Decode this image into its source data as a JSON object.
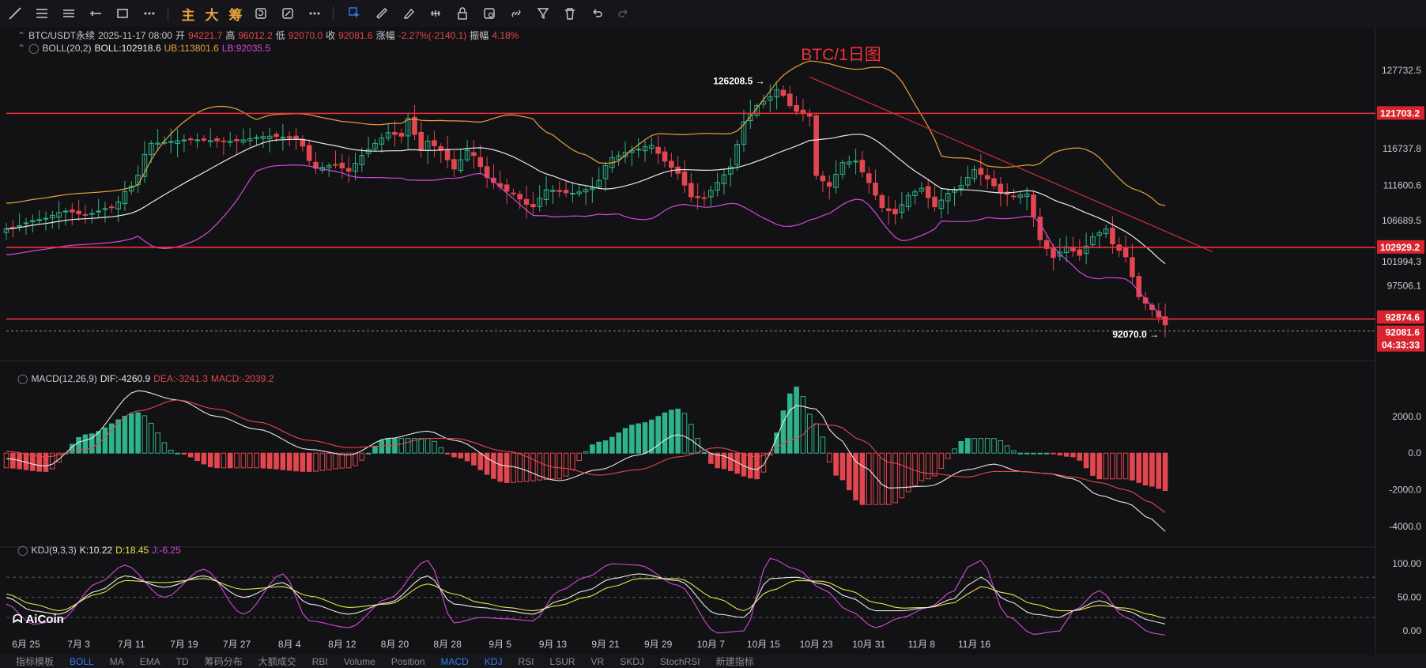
{
  "toolbar": {
    "main_label": "主",
    "big_label": "大",
    "chip_label": "筹"
  },
  "header": {
    "symbol": "BTC/USDT永续",
    "datetime": "2025-11-17 08:00",
    "open_label": "开",
    "open": "94221.7",
    "high_label": "高",
    "high": "96012.2",
    "low_label": "低",
    "low": "92070.0",
    "close_label": "收",
    "close": "92081.6",
    "change_label": "涨幅",
    "change": "-2.27%(-2140.1)",
    "amp_label": "振幅",
    "amp": "4.18%"
  },
  "boll": {
    "label": "BOLL(20,2)",
    "boll": "BOLL:102918.6",
    "ub": "UB:113801.6",
    "lb": "LB:92035.5"
  },
  "macd": {
    "label": "MACD(12,26,9)",
    "dif": "DIF:-4260.9",
    "dea": "DEA:-3241.3",
    "macd": "MACD:-2039.2"
  },
  "kdj": {
    "label": "KDJ(9,3,3)",
    "k": "K:10.22",
    "d": "D:18.45",
    "j": "J:-6.25"
  },
  "brand": "AiCoin",
  "chart_data": {
    "type": "candlestick",
    "title": "BTC/1日图",
    "colors": {
      "up": "#2fb38a",
      "down": "#e2464f",
      "boll_mid": "#e8e8e8",
      "boll_ub": "#e6a23c",
      "boll_lb": "#d14ad6",
      "hline": "#f0313c"
    },
    "price_axis": {
      "ticks": [
        127732.5,
        116737.8,
        111600.6,
        106689.5,
        97506.1
      ],
      "range": [
        89500,
        130500
      ]
    },
    "price_axis_tags": [
      "121703.2",
      "102929.2",
      "92874.6",
      "92081.6",
      "04:33:33"
    ],
    "price_axis_partial_label": "101994.3",
    "horizontal_lines": [
      121703.2,
      102929.2,
      92874.6
    ],
    "annotations": {
      "high": "126208.5",
      "low": "92070.0"
    },
    "trendline": {
      "from": [
        "10月6",
        126208.5
      ],
      "to": [
        "11月17",
        102500
      ]
    },
    "x_ticks": [
      "6月 25",
      "7月 3",
      "7月 11",
      "7月 19",
      "7月 27",
      "8月 4",
      "8月 12",
      "8月 20",
      "8月 28",
      "9月 5",
      "9月 13",
      "9月 21",
      "9月 29",
      "10月 7",
      "10月 15",
      "10月 23",
      "10月 31",
      "11月 8",
      "11月 16"
    ],
    "x_start": "6月 22",
    "close_anchors": [
      [
        0,
        105500
      ],
      [
        5,
        106800
      ],
      [
        9,
        108000
      ],
      [
        12,
        107500
      ],
      [
        16,
        108500
      ],
      [
        19,
        111500
      ],
      [
        22,
        117500
      ],
      [
        28,
        118000
      ],
      [
        34,
        117800
      ],
      [
        40,
        118500
      ],
      [
        44,
        118200
      ],
      [
        47,
        114000
      ],
      [
        50,
        114500
      ],
      [
        52,
        113600
      ],
      [
        54,
        115800
      ],
      [
        56,
        117500
      ],
      [
        58,
        119000
      ],
      [
        60,
        118500
      ],
      [
        61,
        121000
      ],
      [
        63,
        116500
      ],
      [
        64,
        117800
      ],
      [
        66,
        116500
      ],
      [
        68,
        113900
      ],
      [
        70,
        116500
      ],
      [
        74,
        112000
      ],
      [
        76,
        110800
      ],
      [
        80,
        108600
      ],
      [
        82,
        111000
      ],
      [
        86,
        110500
      ],
      [
        89,
        111200
      ],
      [
        92,
        115500
      ],
      [
        95,
        116500
      ],
      [
        98,
        117200
      ],
      [
        100,
        115000
      ],
      [
        102,
        113300
      ],
      [
        104,
        110000
      ],
      [
        106,
        109800
      ],
      [
        108,
        112000
      ],
      [
        110,
        114200
      ],
      [
        112,
        120500
      ],
      [
        114,
        122800
      ],
      [
        116,
        124000
      ],
      [
        117,
        125000
      ],
      [
        120,
        122000
      ],
      [
        122,
        121300
      ],
      [
        123,
        113000
      ],
      [
        125,
        111500
      ],
      [
        127,
        114800
      ],
      [
        129,
        115000
      ],
      [
        131,
        112000
      ],
      [
        133,
        108500
      ],
      [
        135,
        107600
      ],
      [
        137,
        110200
      ],
      [
        139,
        111200
      ],
      [
        141,
        108600
      ],
      [
        143,
        110500
      ],
      [
        145,
        111600
      ],
      [
        147,
        113800
      ],
      [
        149,
        112500
      ],
      [
        151,
        110600
      ],
      [
        153,
        110100
      ],
      [
        155,
        110400
      ],
      [
        157,
        104000
      ],
      [
        159,
        101500
      ],
      [
        161,
        103000
      ],
      [
        163,
        101800
      ],
      [
        165,
        104400
      ],
      [
        167,
        105500
      ],
      [
        168,
        103400
      ],
      [
        170,
        101600
      ],
      [
        172,
        96000
      ],
      [
        174,
        94200
      ],
      [
        176,
        92081.6
      ]
    ],
    "macd_axis": {
      "ticks": [
        2000.0,
        0.0,
        -2000.0,
        -4000.0
      ],
      "range": [
        -4600,
        3800
      ]
    },
    "macd_dif_anchors": [
      [
        0,
        -300
      ],
      [
        6,
        -700
      ],
      [
        12,
        700
      ],
      [
        20,
        3400
      ],
      [
        26,
        2900
      ],
      [
        32,
        2000
      ],
      [
        38,
        1300
      ],
      [
        46,
        200
      ],
      [
        52,
        -100
      ],
      [
        58,
        800
      ],
      [
        64,
        1200
      ],
      [
        68,
        700
      ],
      [
        76,
        -700
      ],
      [
        84,
        -1500
      ],
      [
        90,
        -900
      ],
      [
        96,
        -100
      ],
      [
        102,
        1000
      ],
      [
        108,
        -100
      ],
      [
        114,
        -900
      ],
      [
        120,
        2600
      ],
      [
        123,
        2400
      ],
      [
        126,
        900
      ],
      [
        130,
        -700
      ],
      [
        134,
        -1900
      ],
      [
        140,
        -1800
      ],
      [
        146,
        -900
      ],
      [
        150,
        -600
      ],
      [
        154,
        -1000
      ],
      [
        158,
        -1100
      ],
      [
        162,
        -1400
      ],
      [
        166,
        -2300
      ],
      [
        170,
        -2700
      ],
      [
        174,
        -3600
      ],
      [
        176,
        -4260.9
      ]
    ],
    "macd_dea_anchors": [
      [
        0,
        100
      ],
      [
        6,
        -200
      ],
      [
        12,
        200
      ],
      [
        20,
        2300
      ],
      [
        26,
        2900
      ],
      [
        32,
        2400
      ],
      [
        38,
        1700
      ],
      [
        46,
        700
      ],
      [
        52,
        300
      ],
      [
        58,
        400
      ],
      [
        64,
        800
      ],
      [
        68,
        800
      ],
      [
        76,
        100
      ],
      [
        84,
        -800
      ],
      [
        90,
        -1200
      ],
      [
        96,
        -900
      ],
      [
        102,
        -200
      ],
      [
        108,
        300
      ],
      [
        114,
        -200
      ],
      [
        120,
        800
      ],
      [
        123,
        1600
      ],
      [
        126,
        1500
      ],
      [
        130,
        700
      ],
      [
        134,
        -500
      ],
      [
        140,
        -1100
      ],
      [
        146,
        -1300
      ],
      [
        150,
        -1000
      ],
      [
        154,
        -1000
      ],
      [
        158,
        -1100
      ],
      [
        162,
        -1300
      ],
      [
        166,
        -1600
      ],
      [
        170,
        -2000
      ],
      [
        174,
        -2700
      ],
      [
        176,
        -3241.3
      ]
    ],
    "kdj_axis": {
      "ticks": [
        100.0,
        50.0,
        0.0
      ],
      "dashed_levels": [
        80,
        50,
        20
      ],
      "range": [
        -14,
        112
      ]
    },
    "kdj_k_anchors": [
      [
        0,
        50
      ],
      [
        4,
        30
      ],
      [
        8,
        25
      ],
      [
        14,
        60
      ],
      [
        18,
        82
      ],
      [
        24,
        65
      ],
      [
        30,
        82
      ],
      [
        36,
        50
      ],
      [
        42,
        72
      ],
      [
        46,
        40
      ],
      [
        52,
        25
      ],
      [
        58,
        42
      ],
      [
        64,
        82
      ],
      [
        68,
        40
      ],
      [
        72,
        35
      ],
      [
        76,
        30
      ],
      [
        80,
        25
      ],
      [
        84,
        45
      ],
      [
        88,
        60
      ],
      [
        92,
        78
      ],
      [
        96,
        85
      ],
      [
        102,
        75
      ],
      [
        108,
        25
      ],
      [
        112,
        20
      ],
      [
        116,
        78
      ],
      [
        120,
        80
      ],
      [
        124,
        70
      ],
      [
        128,
        50
      ],
      [
        132,
        30
      ],
      [
        136,
        30
      ],
      [
        140,
        35
      ],
      [
        144,
        48
      ],
      [
        146,
        68
      ],
      [
        148,
        80
      ],
      [
        152,
        45
      ],
      [
        156,
        25
      ],
      [
        160,
        20
      ],
      [
        162,
        30
      ],
      [
        166,
        45
      ],
      [
        170,
        30
      ],
      [
        174,
        15
      ],
      [
        176,
        10.22
      ]
    ],
    "kdj_d_anchors": [
      [
        0,
        55
      ],
      [
        4,
        40
      ],
      [
        8,
        30
      ],
      [
        14,
        55
      ],
      [
        18,
        75
      ],
      [
        24,
        72
      ],
      [
        30,
        78
      ],
      [
        36,
        62
      ],
      [
        42,
        66
      ],
      [
        46,
        52
      ],
      [
        52,
        35
      ],
      [
        58,
        40
      ],
      [
        64,
        70
      ],
      [
        68,
        55
      ],
      [
        72,
        42
      ],
      [
        76,
        35
      ],
      [
        80,
        30
      ],
      [
        84,
        38
      ],
      [
        88,
        50
      ],
      [
        92,
        66
      ],
      [
        96,
        78
      ],
      [
        102,
        78
      ],
      [
        108,
        48
      ],
      [
        112,
        30
      ],
      [
        116,
        60
      ],
      [
        120,
        75
      ],
      [
        124,
        74
      ],
      [
        128,
        60
      ],
      [
        132,
        42
      ],
      [
        136,
        34
      ],
      [
        140,
        35
      ],
      [
        144,
        42
      ],
      [
        146,
        55
      ],
      [
        148,
        66
      ],
      [
        152,
        56
      ],
      [
        156,
        40
      ],
      [
        160,
        30
      ],
      [
        162,
        30
      ],
      [
        166,
        38
      ],
      [
        170,
        34
      ],
      [
        174,
        24
      ],
      [
        176,
        18.45
      ]
    ],
    "kdj_j_anchors": [
      [
        0,
        40
      ],
      [
        4,
        10
      ],
      [
        8,
        15
      ],
      [
        14,
        72
      ],
      [
        18,
        98
      ],
      [
        24,
        50
      ],
      [
        30,
        92
      ],
      [
        36,
        25
      ],
      [
        42,
        85
      ],
      [
        46,
        15
      ],
      [
        52,
        5
      ],
      [
        58,
        48
      ],
      [
        64,
        105
      ],
      [
        68,
        12
      ],
      [
        72,
        20
      ],
      [
        76,
        18
      ],
      [
        80,
        15
      ],
      [
        84,
        60
      ],
      [
        88,
        80
      ],
      [
        92,
        100
      ],
      [
        96,
        98
      ],
      [
        102,
        68
      ],
      [
        108,
        -3
      ],
      [
        112,
        0
      ],
      [
        116,
        108
      ],
      [
        120,
        92
      ],
      [
        124,
        62
      ],
      [
        128,
        30
      ],
      [
        132,
        5
      ],
      [
        136,
        20
      ],
      [
        140,
        35
      ],
      [
        144,
        60
      ],
      [
        146,
        95
      ],
      [
        148,
        105
      ],
      [
        152,
        22
      ],
      [
        156,
        -5
      ],
      [
        160,
        0
      ],
      [
        162,
        30
      ],
      [
        166,
        60
      ],
      [
        170,
        20
      ],
      [
        174,
        -3
      ],
      [
        176,
        -6.25
      ]
    ]
  },
  "bottombar": {
    "items": [
      "指标模板",
      "BOLL",
      "MA",
      "EMA",
      "TD",
      "筹码分布",
      "大额成交",
      "RBI",
      "Volume",
      "Position",
      "MACD",
      "KDJ",
      "RSI",
      "LSUR",
      "VR",
      "SKDJ",
      "StochRSI",
      "新建指标"
    ],
    "active": [
      "BOLL",
      "MACD",
      "KDJ"
    ]
  }
}
